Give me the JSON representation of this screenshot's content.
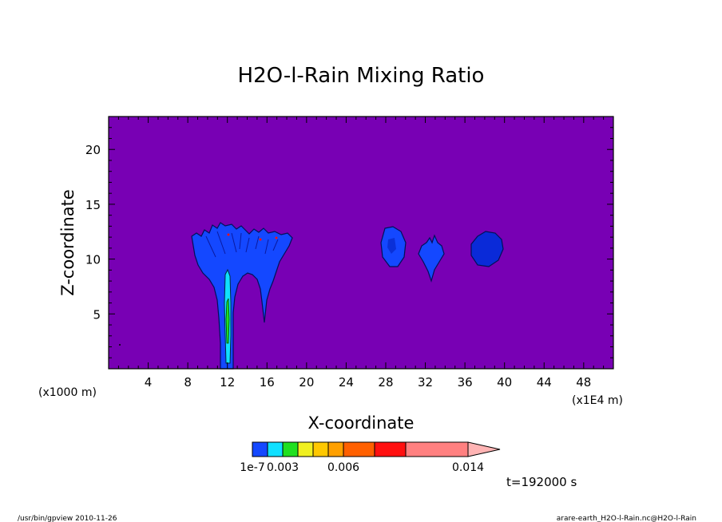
{
  "chart_data": {
    "type": "contour",
    "title": "H2O-l-Rain Mixing Ratio",
    "xlabel": "X-coordinate",
    "ylabel": "Z-coordinate",
    "x_unit_left": "(x1000 m)",
    "x_unit_right": "(x1E4 m)",
    "xlim": [
      0,
      51
    ],
    "ylim": [
      0,
      23
    ],
    "xticks": [
      4,
      8,
      12,
      16,
      20,
      24,
      28,
      32,
      36,
      40,
      44,
      48
    ],
    "yticks": [
      5,
      10,
      15,
      20
    ],
    "time_label": "t=192000 s",
    "colorbar": {
      "labels": [
        "1e-7",
        "0.003",
        "0.006",
        "0.014"
      ],
      "colors": [
        "#1448ff",
        "#10e0ff",
        "#20e020",
        "#f0f020",
        "#ffc800",
        "#ffa000",
        "#ff6000",
        "#ff1010",
        "#ff8080",
        "#ffb4b4"
      ],
      "background_color": "#7800b4"
    },
    "cells": [
      {
        "name": "main-cell",
        "x_center": 12,
        "x_extent": [
          8.5,
          18.5
        ],
        "z_top": 13.2
      },
      {
        "name": "cell-28",
        "x_center": 28.8,
        "z_range": [
          9.5,
          12.8
        ]
      },
      {
        "name": "cell-32",
        "x_center": 32.5,
        "z_range": [
          8.3,
          12.1
        ]
      },
      {
        "name": "cell-38",
        "x_center": 38.5,
        "z_range": [
          9.5,
          12.4
        ]
      }
    ]
  },
  "footer": {
    "left": "/usr/bin/gpview 2010-11-26",
    "right": "arare-earth_H2O-l-Rain.nc@H2O-l-Rain"
  }
}
